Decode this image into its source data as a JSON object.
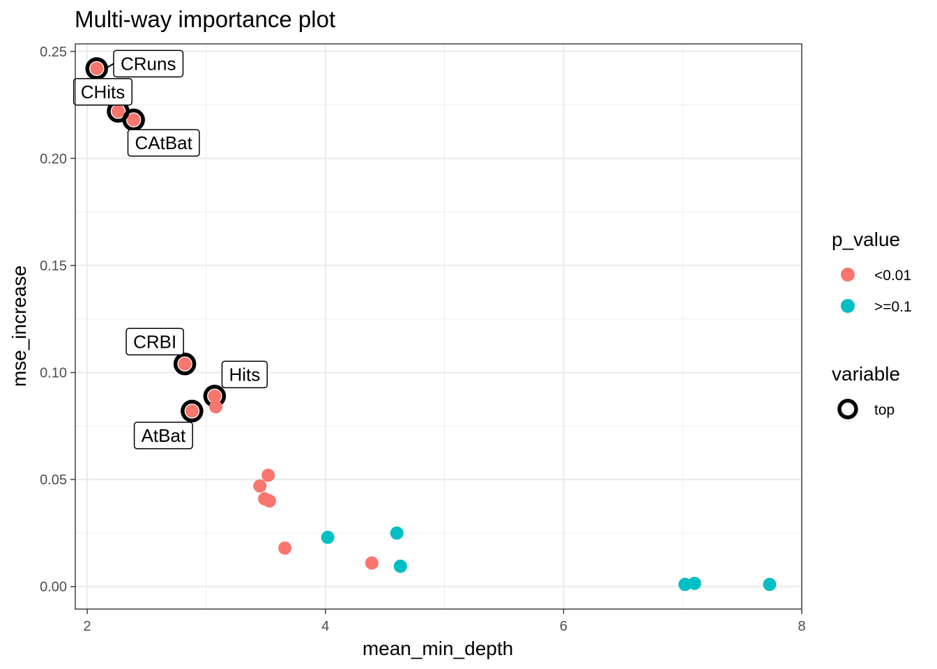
{
  "chart_data": {
    "type": "scatter",
    "title": "Multi-way importance plot",
    "xlabel": "mean_min_depth",
    "ylabel": "mse_increase",
    "xlim": [
      1.9,
      8.0
    ],
    "ylim": [
      -0.0105,
      0.2535
    ],
    "x_ticks": [
      2,
      4,
      6,
      8
    ],
    "x_tick_labels": [
      "2",
      "4",
      "6",
      "8"
    ],
    "y_ticks": [
      0.0,
      0.05,
      0.1,
      0.15,
      0.2,
      0.25
    ],
    "y_tick_labels": [
      "0.00",
      "0.05",
      "0.10",
      "0.15",
      "0.20",
      "0.25"
    ],
    "grid": true,
    "legend_position": "right",
    "legend": {
      "p_value_title": "p_value",
      "variable_title": "variable",
      "entries": [
        {
          "label": "<0.01",
          "color": "#F8766D"
        },
        {
          "label": ">=0.1",
          "color": "#00BFC4"
        }
      ],
      "top_label": "top"
    },
    "series": [
      {
        "name": "<0.01",
        "color": "#F8766D",
        "points": [
          {
            "x": 2.08,
            "y": 0.242,
            "top": true,
            "label": "CRuns"
          },
          {
            "x": 2.26,
            "y": 0.222,
            "top": true,
            "label": "CHits"
          },
          {
            "x": 2.39,
            "y": 0.218,
            "top": true,
            "label": "CAtBat"
          },
          {
            "x": 2.82,
            "y": 0.104,
            "top": true,
            "label": "CRBI"
          },
          {
            "x": 3.07,
            "y": 0.089,
            "top": true,
            "label": "Hits"
          },
          {
            "x": 2.88,
            "y": 0.082,
            "top": true,
            "label": "AtBat"
          },
          {
            "x": 3.08,
            "y": 0.084,
            "top": false
          },
          {
            "x": 3.52,
            "y": 0.052,
            "top": false
          },
          {
            "x": 3.45,
            "y": 0.047,
            "top": false
          },
          {
            "x": 3.49,
            "y": 0.041,
            "top": false
          },
          {
            "x": 3.53,
            "y": 0.04,
            "top": false
          },
          {
            "x": 3.66,
            "y": 0.018,
            "top": false
          },
          {
            "x": 4.39,
            "y": 0.011,
            "top": false
          }
        ]
      },
      {
        "name": ">=0.1",
        "color": "#00BFC4",
        "points": [
          {
            "x": 4.02,
            "y": 0.023,
            "top": false
          },
          {
            "x": 4.6,
            "y": 0.025,
            "top": false
          },
          {
            "x": 4.63,
            "y": 0.0095,
            "top": false
          },
          {
            "x": 7.02,
            "y": 0.001,
            "top": false
          },
          {
            "x": 7.1,
            "y": 0.0015,
            "top": false
          },
          {
            "x": 7.73,
            "y": 0.001,
            "top": false
          }
        ]
      }
    ]
  }
}
